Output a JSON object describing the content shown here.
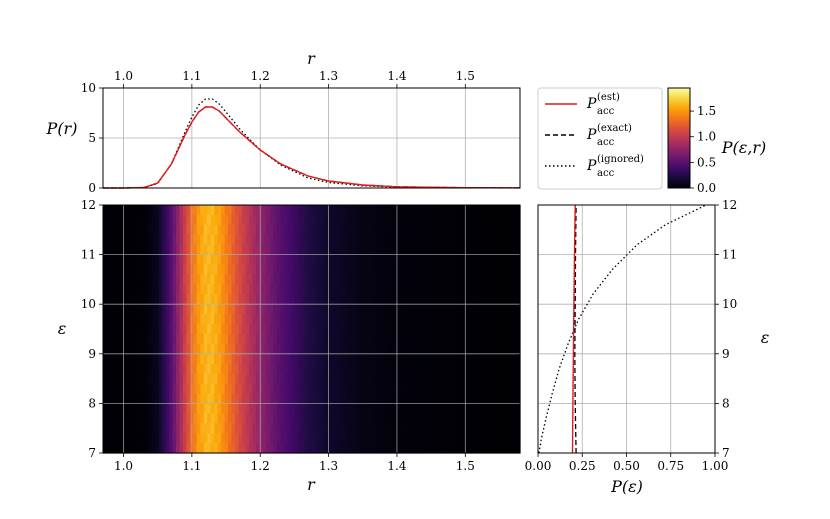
{
  "chart_data": [
    {
      "panel": "top",
      "type": "line",
      "xlabel": "r",
      "ylabel": "P(r)",
      "xlim": [
        0.97,
        1.58
      ],
      "ylim": [
        0,
        10
      ],
      "xticks": [
        "1.0",
        "1.1",
        "1.2",
        "1.3",
        "1.4",
        "1.5"
      ],
      "yticks": [
        "0",
        "5",
        "10"
      ],
      "x_axis_position": "top",
      "grid": true,
      "x": [
        0.97,
        1.0,
        1.03,
        1.05,
        1.07,
        1.09,
        1.1,
        1.11,
        1.12,
        1.13,
        1.14,
        1.15,
        1.17,
        1.2,
        1.23,
        1.27,
        1.3,
        1.35,
        1.4,
        1.5,
        1.58
      ],
      "series": [
        {
          "name": "P_acc^(est)",
          "style": "solid",
          "color": "#e31a1c",
          "values": [
            0,
            0.0,
            0.05,
            0.5,
            2.4,
            5.3,
            6.6,
            7.6,
            8.1,
            8.1,
            7.7,
            7.0,
            5.6,
            3.8,
            2.4,
            1.2,
            0.7,
            0.3,
            0.12,
            0.03,
            0.01
          ]
        },
        {
          "name": "P_acc^(exact)",
          "style": "dashed",
          "color": "#000000",
          "values": [
            0,
            0.0,
            0.05,
            0.5,
            2.4,
            5.3,
            6.6,
            7.6,
            8.1,
            8.1,
            7.7,
            7.0,
            5.6,
            3.8,
            2.4,
            1.2,
            0.7,
            0.3,
            0.12,
            0.03,
            0.01
          ]
        },
        {
          "name": "P_acc^(ignored)",
          "style": "dotted",
          "color": "#000000",
          "values": [
            0,
            0.0,
            0.04,
            0.45,
            2.4,
            5.6,
            7.1,
            8.3,
            8.9,
            8.9,
            8.4,
            7.6,
            5.9,
            3.8,
            2.3,
            1.0,
            0.55,
            0.22,
            0.08,
            0.02,
            0.005
          ]
        }
      ]
    },
    {
      "panel": "main",
      "type": "heatmap",
      "xlabel": "r",
      "ylabel": "ε",
      "xlim": [
        0.97,
        1.58
      ],
      "ylim": [
        7,
        12
      ],
      "xticks": [
        "1.0",
        "1.1",
        "1.2",
        "1.3",
        "1.4",
        "1.5"
      ],
      "yticks": [
        "7",
        "8",
        "9",
        "10",
        "11",
        "12"
      ],
      "grid": true,
      "colormap": "inferno",
      "value_profile_over_r": {
        "r": [
          0.97,
          1.03,
          1.05,
          1.07,
          1.09,
          1.1,
          1.11,
          1.12,
          1.13,
          1.14,
          1.15,
          1.17,
          1.2,
          1.23,
          1.27,
          1.3,
          1.35,
          1.4,
          1.5,
          1.58
        ],
        "value": [
          0.0,
          0.01,
          0.1,
          0.48,
          1.06,
          1.32,
          1.52,
          1.62,
          1.62,
          1.54,
          1.4,
          1.12,
          0.76,
          0.48,
          0.24,
          0.14,
          0.06,
          0.024,
          0.006,
          0.002
        ]
      }
    },
    {
      "panel": "colorbar",
      "type": "colorbar",
      "label": "P(ε,r)",
      "range": [
        0,
        1.95
      ],
      "ticks": [
        "0.0",
        "0.5",
        "1.0",
        "1.5"
      ],
      "colormap": "inferno"
    },
    {
      "panel": "right",
      "type": "line",
      "xlabel": "P(ε)",
      "ylabel": "ε",
      "y_axis_position": "right",
      "xlim": [
        0,
        1
      ],
      "ylim": [
        7,
        12
      ],
      "xticks": [
        "0.00",
        "0.25",
        "0.50",
        "0.75",
        "1.00"
      ],
      "yticks": [
        "7",
        "8",
        "9",
        "10",
        "11",
        "12"
      ],
      "grid": true,
      "series": [
        {
          "name": "P_acc^(est)",
          "style": "solid",
          "color": "#e31a1c",
          "y": [
            7,
            8,
            9,
            10,
            11,
            12
          ],
          "x": [
            0.195,
            0.197,
            0.2,
            0.203,
            0.206,
            0.21
          ]
        },
        {
          "name": "P_acc^(exact)",
          "style": "dashed",
          "color": "#000000",
          "y": [
            7,
            8,
            9,
            10,
            11,
            12
          ],
          "x": [
            0.215,
            0.21,
            0.208,
            0.21,
            0.212,
            0.215
          ]
        },
        {
          "name": "P_acc^(ignored)",
          "style": "dotted",
          "color": "#000000",
          "y": [
            7,
            7.3,
            7.7,
            8.2,
            8.7,
            9.2,
            9.7,
            10.2,
            10.7,
            11.2,
            11.6,
            12
          ],
          "x": [
            0.005,
            0.02,
            0.045,
            0.08,
            0.12,
            0.17,
            0.23,
            0.31,
            0.42,
            0.56,
            0.72,
            0.95
          ]
        }
      ]
    }
  ],
  "legend": {
    "placement": "upper-right",
    "entries": [
      {
        "base": "P",
        "sub": "acc",
        "sup": "(est)",
        "style": "solid",
        "color": "#e31a1c"
      },
      {
        "base": "P",
        "sub": "acc",
        "sup": "(exact)",
        "style": "dashed",
        "color": "#000000"
      },
      {
        "base": "P",
        "sub": "acc",
        "sup": "(ignored)",
        "style": "dotted",
        "color": "#000000"
      }
    ]
  }
}
